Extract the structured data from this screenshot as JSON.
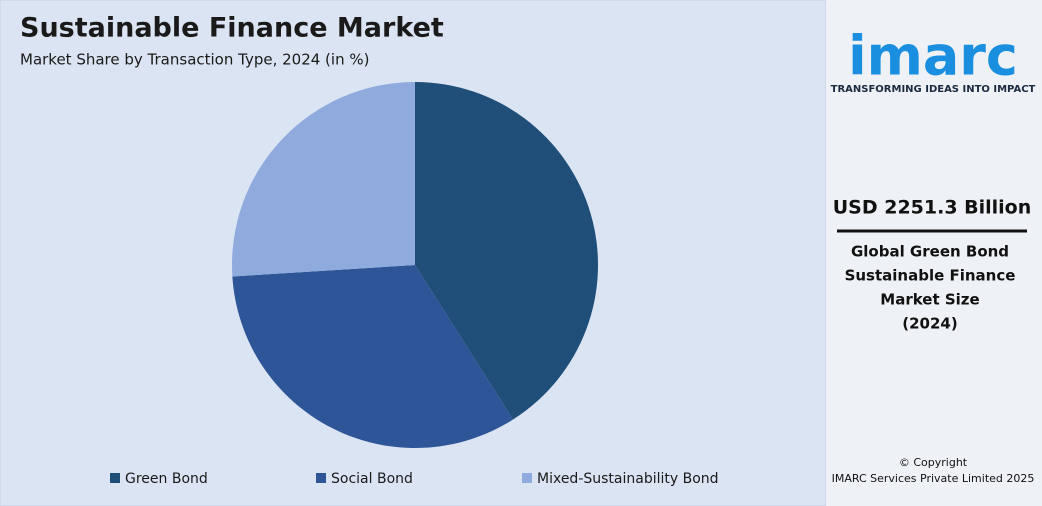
{
  "chart_data": {
    "type": "pie",
    "title": "Sustainable Finance Market",
    "subtitle": "Market Share by Transaction Type, 2024 (in %)",
    "categories": [
      "Green Bond",
      "Social Bond",
      "Mixed-Sustainability Bond"
    ],
    "values": [
      41,
      33,
      26
    ],
    "colors": [
      "#1f4e79",
      "#2e5597",
      "#8faadc"
    ],
    "legend": "bottom"
  },
  "sidebar": {
    "logo": "imarc",
    "tagline": "TRANSFORMING IDEAS INTO IMPACT",
    "headline": "USD 2251.3 Billion",
    "caption": [
      "Global Green Bond",
      "Sustainable Finance",
      "Market Size",
      "(2024)"
    ],
    "copyright": [
      "© Copyright",
      "IMARC Services Private Limited 2025"
    ]
  }
}
